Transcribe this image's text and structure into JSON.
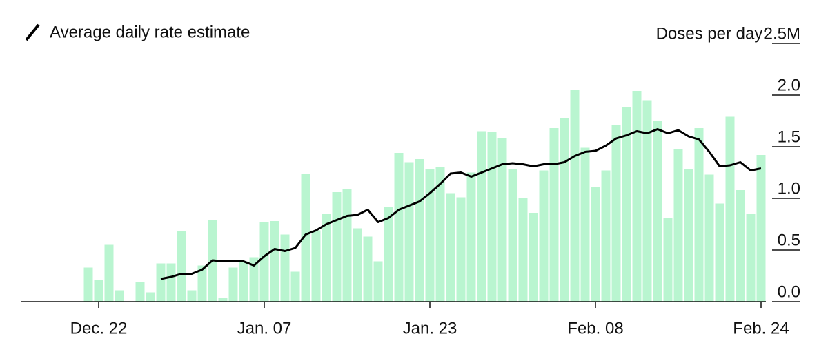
{
  "chart_data": {
    "type": "bar-line",
    "legend": "Average daily rate estimate",
    "y_label": "Doses per day:",
    "categories": [
      null,
      "Dec. 22",
      null,
      null,
      null,
      null,
      null,
      null,
      null,
      null,
      null,
      null,
      null,
      null,
      null,
      null,
      null,
      "Jan. 07",
      null,
      null,
      null,
      null,
      null,
      null,
      null,
      null,
      null,
      null,
      null,
      null,
      null,
      null,
      null,
      "Jan. 23",
      null,
      null,
      null,
      null,
      null,
      null,
      null,
      null,
      null,
      null,
      null,
      null,
      null,
      null,
      null,
      "Feb. 08",
      null,
      null,
      null,
      null,
      null,
      null,
      null,
      null,
      null,
      null,
      null,
      null,
      null,
      null,
      null,
      "Feb. 24"
    ],
    "series": [
      {
        "name": "Doses per day",
        "color": "#b9f5d0",
        "values": [
          0.33,
          0.21,
          0.55,
          0.11,
          0,
          0.19,
          0.09,
          0.37,
          0.37,
          0.68,
          0.11,
          0.35,
          0.79,
          0.04,
          0.33,
          0.39,
          0.43,
          0.77,
          0.78,
          0.65,
          0.29,
          1.24,
          0.69,
          0.85,
          1.06,
          1.09,
          0.71,
          0.63,
          0.39,
          0.92,
          1.44,
          1.35,
          1.38,
          1.28,
          1.3,
          1.05,
          1.01,
          1.25,
          1.65,
          1.64,
          1.58,
          1.28,
          1.0,
          0.86,
          1.27,
          1.68,
          1.78,
          2.05,
          1.49,
          1.11,
          1.27,
          1.71,
          1.88,
          2.04,
          1.95,
          1.75,
          0.81,
          1.48,
          1.28,
          1.68,
          1.23,
          0.95,
          1.79,
          1.08,
          0.85,
          1.42
        ]
      },
      {
        "name": "Average daily rate estimate",
        "color": "#000000",
        "values": [
          null,
          null,
          null,
          null,
          null,
          null,
          null,
          0.22,
          0.24,
          0.27,
          0.27,
          0.31,
          0.4,
          0.39,
          0.39,
          0.39,
          0.35,
          0.44,
          0.51,
          0.49,
          0.52,
          0.65,
          0.69,
          0.75,
          0.79,
          0.83,
          0.84,
          0.89,
          0.77,
          0.81,
          0.89,
          0.93,
          0.97,
          1.05,
          1.14,
          1.24,
          1.25,
          1.21,
          1.25,
          1.29,
          1.33,
          1.34,
          1.33,
          1.31,
          1.33,
          1.33,
          1.35,
          1.41,
          1.45,
          1.46,
          1.51,
          1.58,
          1.61,
          1.65,
          1.63,
          1.67,
          1.63,
          1.66,
          1.6,
          1.57,
          1.45,
          1.31,
          1.32,
          1.35,
          1.27,
          1.29
        ]
      }
    ],
    "ylim": [
      0,
      2.5
    ],
    "yticks": [
      {
        "value": 0,
        "label": "0.0"
      },
      {
        "value": 0.5,
        "label": "0.5"
      },
      {
        "value": 1,
        "label": "1.0"
      },
      {
        "value": 1.5,
        "label": "1.5"
      },
      {
        "value": 2,
        "label": "2.0"
      },
      {
        "value": 2.5,
        "label": "2.5M"
      }
    ]
  }
}
